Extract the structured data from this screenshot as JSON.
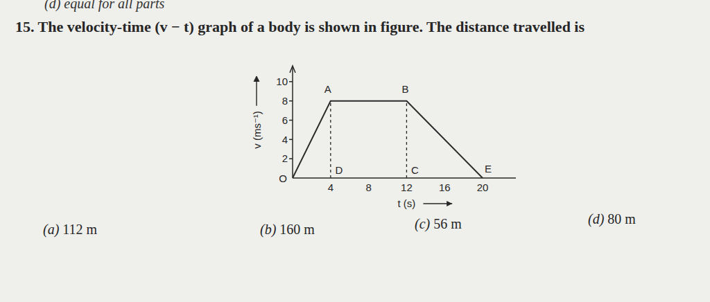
{
  "header": "(d) equal for all parts",
  "question": "15. The velocity-time (v − t) graph of a body is shown in figure. The distance travelled is",
  "chart_data": {
    "type": "line",
    "x_label": "t (s)",
    "y_label": "v (ms⁻¹)",
    "x": [
      0,
      4,
      12,
      20
    ],
    "values": [
      0,
      8,
      8,
      0
    ],
    "color": "#2b2b2b",
    "xlim": [
      0,
      23.5
    ],
    "ylim": [
      0,
      11.5
    ],
    "xticks": [
      4,
      8,
      12,
      16,
      20
    ],
    "yticks": [
      2,
      4,
      6,
      8,
      10
    ],
    "origin_label": "O",
    "annotations": [
      {
        "text": "A",
        "x": 4,
        "y": 8
      },
      {
        "text": "B",
        "x": 12,
        "y": 8
      },
      {
        "text": "D",
        "x": 4,
        "y": 0
      },
      {
        "text": "C",
        "x": 12,
        "y": 0
      },
      {
        "text": "E",
        "x": 20,
        "y": 0
      }
    ],
    "dashed_lines": [
      {
        "x": 4,
        "y": 8
      },
      {
        "x": 12,
        "y": 8
      }
    ]
  },
  "options": [
    {
      "label": "(a)",
      "text": "112 m"
    },
    {
      "label": "(b)",
      "text": "160 m"
    },
    {
      "label": "(c)",
      "text": "56 m"
    },
    {
      "label": "(d)",
      "text": "80 m"
    }
  ]
}
